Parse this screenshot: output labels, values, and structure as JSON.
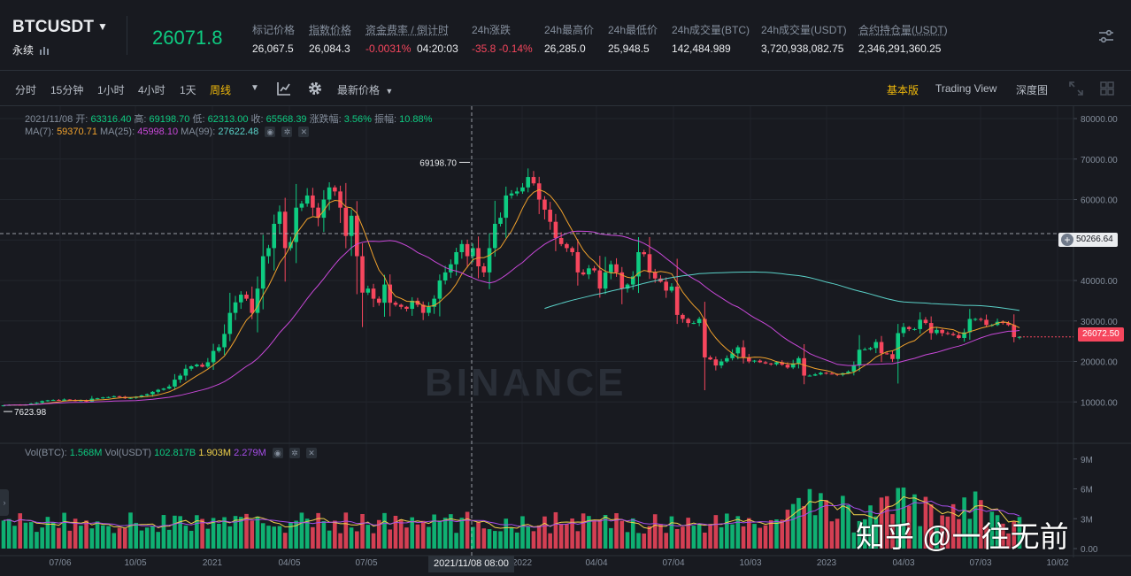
{
  "header": {
    "symbol": "BTCUSDT",
    "contract_type": "永续",
    "last_price": "26071.8",
    "stats": [
      {
        "label": "标记价格",
        "value": "26,067.5",
        "dotted": false,
        "color": "normal"
      },
      {
        "label": "指数价格",
        "value": "26,084.3",
        "dotted": true,
        "color": "normal"
      },
      {
        "label": "资金费率 / 倒计时",
        "value": "-0.0031%",
        "value2": "04:20:03",
        "dotted": true,
        "color": "red"
      },
      {
        "label": "24h涨跌",
        "value": "-35.8 -0.14%",
        "dotted": false,
        "color": "red"
      },
      {
        "label": "24h最高价",
        "value": "26,285.0",
        "dotted": false,
        "color": "normal"
      },
      {
        "label": "24h最低价",
        "value": "25,948.5",
        "dotted": false,
        "color": "normal"
      },
      {
        "label": "24h成交量(BTC)",
        "value": "142,484.989",
        "dotted": false,
        "color": "normal"
      },
      {
        "label": "24h成交量(USDT)",
        "value": "3,720,938,082.75",
        "dotted": false,
        "color": "normal"
      },
      {
        "label": "合约持仓量(USDT)",
        "value": "2,346,291,360.25",
        "dotted": true,
        "color": "normal"
      }
    ]
  },
  "toolbar": {
    "timeframes": [
      "分时",
      "15分钟",
      "1小时",
      "4小时",
      "1天",
      "周线"
    ],
    "active_timeframe": "周线",
    "price_type": "最新价格",
    "views": [
      "基本版",
      "Trading View",
      "深度图"
    ],
    "active_view": "基本版"
  },
  "legend": {
    "ohlc": {
      "date": "2021/11/08",
      "open_label": "开:",
      "open": "63316.40",
      "high_label": "高:",
      "high": "69198.70",
      "low_label": "低:",
      "low": "62313.00",
      "close_label": "收:",
      "close": "65568.39",
      "change_label": "涨跌幅:",
      "change": "3.56%",
      "amp_label": "振幅:",
      "amp": "10.88%"
    },
    "ma": {
      "ma7_label": "MA(7):",
      "ma7": "59370.71",
      "ma25_label": "MA(25):",
      "ma25": "45998.10",
      "ma99_label": "MA(99):",
      "ma99": "27622.48"
    },
    "vol": {
      "btc_label": "Vol(BTC):",
      "btc": "1.568M",
      "usdt_label": "Vol(USDT)",
      "usdt": "102.817B",
      "v5": "1.903M",
      "v10": "2.279M"
    }
  },
  "price_axis": [
    "80000.00",
    "70000.00",
    "60000.00",
    "50000.00",
    "40000.00",
    "30000.00",
    "20000.00",
    "10000.00"
  ],
  "vol_axis": [
    "9M",
    "6M",
    "3M",
    "0.00"
  ],
  "time_axis": [
    "07/06",
    "10/05",
    "2021",
    "04/05",
    "07/05",
    "2022",
    "04/04",
    "07/04",
    "10/03",
    "2023",
    "04/03",
    "07/03",
    "10/02"
  ],
  "annotations": {
    "high_marker": "69198.70",
    "low_marker": "7623.98",
    "crosshair_price": "50266.64",
    "last_price_tag": "26072.50",
    "crosshair_time": "2021/11/08 08:00"
  },
  "watermark": "知乎 @一往无前",
  "exchange_watermark": "BINANCE",
  "colors": {
    "up": "#0ecb81",
    "down": "#f6465d",
    "ma7": "#f0a12c",
    "ma25": "#c848d8",
    "ma99": "#5ad1c8",
    "vol_ma5": "#f0d24b",
    "vol_ma10": "#a64de8",
    "accent": "#f0b90b"
  },
  "chart_data": {
    "type": "candlestick",
    "interval": "1w",
    "ylim": [
      0,
      82000
    ],
    "closes": [
      9150,
      9250,
      9300,
      9200,
      9350,
      9600,
      9800,
      10200,
      10400,
      10500,
      10300,
      10600,
      10450,
      10200,
      10400,
      10100,
      10800,
      10900,
      11100,
      11200,
      11400,
      11250,
      10900,
      11000,
      11300,
      11600,
      11900,
      12500,
      13000,
      13300,
      13800,
      15500,
      16500,
      18200,
      18800,
      19200,
      18700,
      19800,
      22600,
      23500,
      26800,
      32000,
      34600,
      36500,
      35500,
      32000,
      38000,
      46000,
      48000,
      54000,
      57000,
      48000,
      49500,
      58000,
      59000,
      61000,
      58000,
      55500,
      60000,
      63000,
      62000,
      58000,
      51000,
      56000,
      46000,
      37000,
      38000,
      35500,
      34500,
      39000,
      34500,
      34000,
      33500,
      33000,
      35000,
      34000,
      32000,
      33500,
      35500,
      40000,
      42000,
      44000,
      47000,
      49000,
      46000,
      48000,
      43500,
      42000,
      48000,
      54000,
      55500,
      61000,
      61500,
      62000,
      63000,
      65568,
      64000,
      60000,
      57500,
      54500,
      50500,
      49000,
      48000,
      47000,
      42000,
      41500,
      43000,
      42500,
      38000,
      42000,
      44000,
      42000,
      38000,
      39000,
      41000,
      47000,
      46500,
      42000,
      40500,
      39700,
      37500,
      38500,
      31500,
      30500,
      29500,
      29500,
      30500,
      21000,
      20500,
      19000,
      20000,
      20800,
      22000,
      23500,
      21000,
      20000,
      20200,
      19800,
      19500,
      19300,
      19800,
      19200,
      18500,
      19500,
      20800,
      16500,
      16500,
      16800,
      17200,
      17000,
      16900,
      16700,
      17100,
      17500,
      19000,
      22900,
      23000,
      23300,
      24800,
      22000,
      21800,
      20600,
      27000,
      28500,
      28000,
      28000,
      30300,
      29500,
      27000,
      27800,
      27000,
      26800,
      26500,
      25800,
      27200,
      30500,
      30500,
      30300,
      29000,
      29000,
      29800,
      29500,
      29000,
      26000,
      26072
    ]
  }
}
